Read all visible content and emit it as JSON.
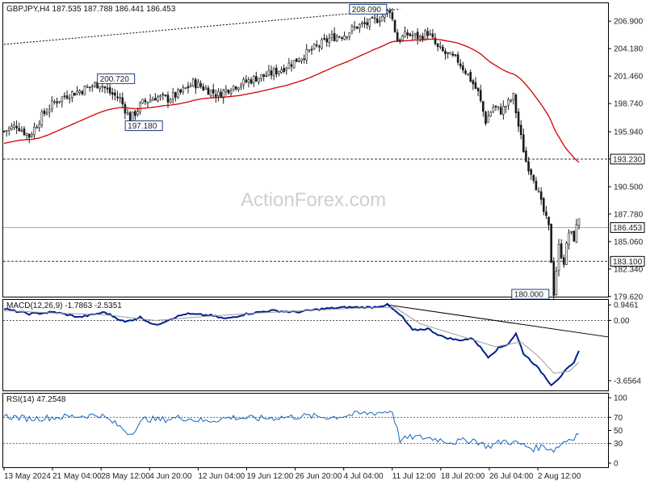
{
  "watermark": "ActionForex.com",
  "chart_data": [
    {
      "type": "candlestick",
      "panel": "price",
      "title": "GBPJPY,H4  187.535 187.788 186.441 186.453",
      "ylim": [
        179.6,
        208.6
      ],
      "y_ticks": [
        "206.900",
        "204.180",
        "201.460",
        "198.740",
        "195.940",
        "193.230",
        "190.500",
        "187.780",
        "185.060",
        "182.340",
        "179.620"
      ],
      "x_tick_labels": [
        "13 May 2024",
        "21 May 04:00",
        "28 May 12:00",
        "4 Jun 20:00",
        "12 Jun 04:00",
        "19 Jun 12:00",
        "26 Jun 20:00",
        "4 Jul 04:00",
        "11 Jul 12:00",
        "18 Jul 20:00",
        "26 Jul 04:00",
        "2 Aug 12:00"
      ],
      "close_path": [
        [
          0,
          196.0
        ],
        [
          5,
          196.6
        ],
        [
          10,
          195.5
        ],
        [
          15,
          197.5
        ],
        [
          20,
          198.9
        ],
        [
          25,
          199.6
        ],
        [
          30,
          200.0
        ],
        [
          35,
          200.5
        ],
        [
          38,
          200.72
        ],
        [
          42,
          199.8
        ],
        [
          46,
          199.2
        ],
        [
          50,
          197.18
        ],
        [
          55,
          198.8
        ],
        [
          60,
          199.4
        ],
        [
          65,
          199.2
        ],
        [
          70,
          199.8
        ],
        [
          75,
          200.8
        ],
        [
          80,
          200.2
        ],
        [
          85,
          199.6
        ],
        [
          90,
          200.4
        ],
        [
          95,
          200.8
        ],
        [
          100,
          201.3
        ],
        [
          105,
          201.6
        ],
        [
          110,
          202.2
        ],
        [
          115,
          202.9
        ],
        [
          120,
          203.7
        ],
        [
          125,
          204.5
        ],
        [
          130,
          205.3
        ],
        [
          135,
          205.6
        ],
        [
          140,
          206.4
        ],
        [
          145,
          206.7
        ],
        [
          150,
          207.4
        ],
        [
          153,
          208.09
        ],
        [
          156,
          205.0
        ],
        [
          160,
          205.6
        ],
        [
          165,
          205.3
        ],
        [
          168,
          205.8
        ],
        [
          172,
          204.2
        ],
        [
          176,
          203.5
        ],
        [
          180,
          203.0
        ],
        [
          184,
          201.6
        ],
        [
          188,
          199.8
        ],
        [
          191,
          197.0
        ],
        [
          194,
          198.4
        ],
        [
          197,
          198.0
        ],
        [
          200,
          198.8
        ],
        [
          202,
          199.4
        ],
        [
          204,
          196.5
        ],
        [
          207,
          193.0
        ],
        [
          210,
          191.5
        ],
        [
          213,
          188.8
        ],
        [
          216,
          186.4
        ],
        [
          218,
          180.0
        ],
        [
          220,
          184.5
        ],
        [
          222,
          183.1
        ],
        [
          224,
          186.0
        ],
        [
          226,
          185.4
        ],
        [
          228,
          187.5
        ]
      ],
      "levels": [
        {
          "label": "193.230",
          "value": 193.23,
          "style": "dashed"
        },
        {
          "label": "186.453",
          "value": 186.453,
          "style": "solid"
        },
        {
          "label": "183.100",
          "value": 183.1,
          "style": "dashed"
        }
      ],
      "annotations": [
        {
          "label": "208.090",
          "x": 153,
          "value": 208.09
        },
        {
          "label": "200.720",
          "x": 38,
          "value": 200.72
        },
        {
          "label": "197.180",
          "x": 50,
          "value": 197.18
        },
        {
          "label": "180.000",
          "x": 218,
          "value": 180.0
        }
      ],
      "trendline": [
        [
          0,
          204.6
        ],
        [
          157,
          208.09
        ]
      ],
      "ma_period": 55
    },
    {
      "type": "line",
      "panel": "macd",
      "title": "MACD(12,26,9) -1.7863 -2.5351",
      "ylim": [
        -4.2,
        1.2
      ],
      "y_ticks": [
        "0.9461",
        "0.00",
        "-3.6564"
      ],
      "series": [
        {
          "key": "macd",
          "points": [
            [
              0,
              0.7
            ],
            [
              10,
              0.4
            ],
            [
              20,
              0.5
            ],
            [
              30,
              0.2
            ],
            [
              40,
              0.5
            ],
            [
              48,
              -0.1
            ],
            [
              54,
              0.2
            ],
            [
              60,
              -0.3
            ],
            [
              66,
              0.1
            ],
            [
              72,
              0.4
            ],
            [
              82,
              0.3
            ],
            [
              88,
              0.1
            ],
            [
              96,
              0.4
            ],
            [
              106,
              0.6
            ],
            [
              116,
              0.5
            ],
            [
              126,
              0.7
            ],
            [
              136,
              0.8
            ],
            [
              146,
              0.8
            ],
            [
              152,
              0.95
            ],
            [
              158,
              0.2
            ],
            [
              162,
              -0.6
            ],
            [
              168,
              -0.5
            ],
            [
              174,
              -1.0
            ],
            [
              180,
              -1.2
            ],
            [
              186,
              -1.1
            ],
            [
              192,
              -2.2
            ],
            [
              196,
              -1.7
            ],
            [
              200,
              -1.4
            ],
            [
              203,
              -0.8
            ],
            [
              206,
              -2.0
            ],
            [
              210,
              -2.6
            ],
            [
              214,
              -3.3
            ],
            [
              217,
              -3.9
            ],
            [
              220,
              -3.5
            ],
            [
              223,
              -3.0
            ],
            [
              226,
              -2.6
            ],
            [
              228,
              -1.79
            ]
          ]
        },
        {
          "key": "signal",
          "points": [
            [
              0,
              0.6
            ],
            [
              20,
              0.45
            ],
            [
              40,
              0.35
            ],
            [
              60,
              0.0
            ],
            [
              80,
              0.25
            ],
            [
              100,
              0.45
            ],
            [
              120,
              0.6
            ],
            [
              140,
              0.75
            ],
            [
              155,
              0.8
            ],
            [
              165,
              -0.2
            ],
            [
              180,
              -0.9
            ],
            [
              195,
              -1.6
            ],
            [
              205,
              -1.3
            ],
            [
              212,
              -2.2
            ],
            [
              218,
              -3.2
            ],
            [
              224,
              -3.1
            ],
            [
              228,
              -2.54
            ]
          ]
        }
      ],
      "trendline": [
        [
          152,
          0.95
        ],
        [
          234,
          -1.0
        ]
      ]
    },
    {
      "type": "line",
      "panel": "rsi",
      "title": "RSI(14) 47.2548",
      "ylim": [
        0,
        100
      ],
      "y_ticks": [
        "100",
        "70",
        "50",
        "30",
        "0"
      ],
      "series": [
        {
          "key": "rsi",
          "points": [
            [
              0,
              72
            ],
            [
              10,
              68
            ],
            [
              20,
              70
            ],
            [
              30,
              72
            ],
            [
              38,
              74
            ],
            [
              45,
              58
            ],
            [
              50,
              45
            ],
            [
              56,
              68
            ],
            [
              62,
              66
            ],
            [
              70,
              70
            ],
            [
              80,
              64
            ],
            [
              90,
              70
            ],
            [
              100,
              68
            ],
            [
              110,
              70
            ],
            [
              120,
              72
            ],
            [
              130,
              70
            ],
            [
              140,
              75
            ],
            [
              150,
              78
            ],
            [
              154,
              80
            ],
            [
              157,
              35
            ],
            [
              162,
              40
            ],
            [
              170,
              38
            ],
            [
              178,
              32
            ],
            [
              186,
              36
            ],
            [
              192,
              25
            ],
            [
              198,
              34
            ],
            [
              204,
              30
            ],
            [
              210,
              22
            ],
            [
              214,
              26
            ],
            [
              218,
              20
            ],
            [
              222,
              33
            ],
            [
              226,
              40
            ],
            [
              228,
              47
            ]
          ]
        }
      ]
    }
  ]
}
